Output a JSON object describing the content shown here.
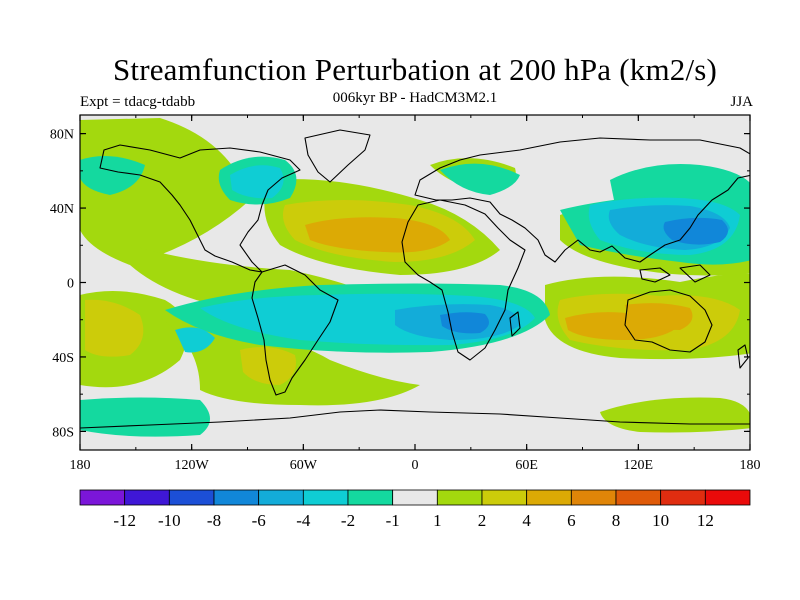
{
  "chart_data": {
    "type": "heatmap",
    "title": "Streamfunction Perturbation at 200 hPa (km2/s)",
    "subtitle": "006kyr BP - HadCM3M2.1",
    "left_label": "Expt = tdacg-tdabb",
    "right_label": "JJA",
    "x_ticks": [
      "180",
      "120W",
      "60W",
      "0",
      "60E",
      "120E",
      "180"
    ],
    "y_ticks": [
      "80N",
      "40N",
      "0",
      "40S",
      "80S"
    ],
    "xlim": [
      -180,
      180
    ],
    "ylim": [
      -90,
      90
    ],
    "colorbar": {
      "labels": [
        "-12",
        "-10",
        "-8",
        "-6",
        "-4",
        "-2",
        "-1",
        "1",
        "2",
        "4",
        "6",
        "8",
        "10",
        "12"
      ],
      "colors": [
        "#7b16d9",
        "#3f17d6",
        "#1c4fd6",
        "#1187d9",
        "#13acd9",
        "#0fcdd4",
        "#14d99f",
        "#e8e8e8",
        "#a3d90e",
        "#cccc0a",
        "#dcaa05",
        "#e08508",
        "#df5a09",
        "#e02d10",
        "#ea0a0a"
      ]
    },
    "features": [
      {
        "region": "N Africa / tropical Atlantic",
        "lon": -20,
        "lat": 25,
        "value": 5
      },
      {
        "region": "Mediterranean",
        "lon": 15,
        "lat": 38,
        "value": 2
      },
      {
        "region": "NW Pacific / East Asia",
        "lon": 150,
        "lat": 28,
        "value": -7
      },
      {
        "region": "S Atlantic / Africa",
        "lon": 20,
        "lat": -22,
        "value": -6
      },
      {
        "region": "South America",
        "lon": -65,
        "lat": -15,
        "value": -3
      },
      {
        "region": "Australia / Indian Ocean",
        "lon": 125,
        "lat": -25,
        "value": 5
      },
      {
        "region": "Southern Argentina",
        "lon": -65,
        "lat": -48,
        "value": 4
      },
      {
        "region": "South Pacific",
        "lon": -155,
        "lat": -25,
        "value": 3
      },
      {
        "region": "North Atlantic / Greenland",
        "lon": -50,
        "lat": 60,
        "value": -2
      },
      {
        "region": "Southern Ocean",
        "lon": 150,
        "lat": -70,
        "value": 2
      }
    ]
  }
}
